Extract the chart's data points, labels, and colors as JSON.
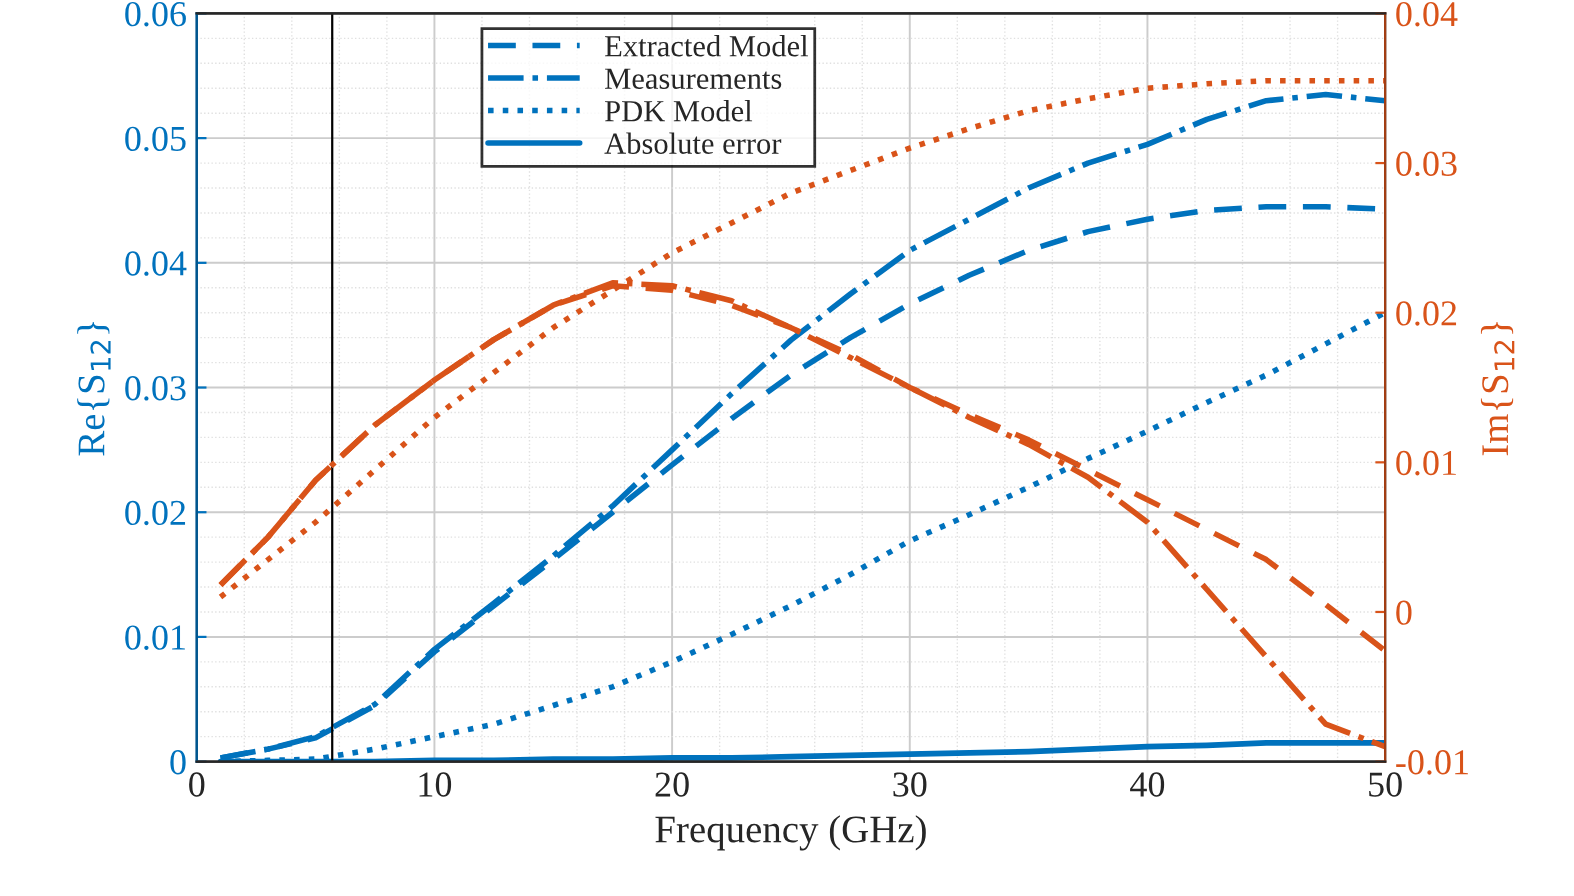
{
  "chart_data": {
    "type": "line",
    "xlabel": "Frequency (GHz)",
    "ylabel": "Re{S$_{12}$}",
    "y2label": "Im{S$_{12}$}",
    "xlim": [
      0,
      50
    ],
    "xticks": [
      0,
      10,
      20,
      30,
      40,
      50
    ],
    "ylim": [
      0,
      0.06
    ],
    "yticks": [
      0,
      0.01,
      0.02,
      0.03,
      0.04,
      0.05,
      0.06
    ],
    "y2lim": [
      -0.01,
      0.04
    ],
    "y2ticks": [
      -0.01,
      0,
      0.01,
      0.02,
      0.03,
      0.04
    ],
    "grid": true,
    "legend": "top",
    "ref_lines": [
      {
        "axis": "x",
        "value": 5.7,
        "color": "#000000"
      }
    ],
    "x": [
      1,
      3,
      5,
      7.5,
      10,
      12.5,
      15,
      17.5,
      20,
      22.5,
      25,
      27.5,
      30,
      32.5,
      35,
      37.5,
      40,
      42.5,
      45,
      47.5,
      50
    ],
    "series": [
      {
        "name": "Extracted Model",
        "color": "#0072bd",
        "line_style": "dashed",
        "values": [
          0.0003,
          0.001,
          0.0019,
          0.0045,
          0.0088,
          0.0125,
          0.0162,
          0.02,
          0.0238,
          0.0275,
          0.031,
          0.034,
          0.0367,
          0.039,
          0.041,
          0.0425,
          0.0435,
          0.0442,
          0.0445,
          0.0445,
          0.0443
        ]
      },
      {
        "name": "Measurements",
        "color": "#0072bd",
        "line_style": "dashdot",
        "values": [
          0.0003,
          0.001,
          0.002,
          0.0046,
          0.009,
          0.0127,
          0.0165,
          0.0205,
          0.025,
          0.0295,
          0.0338,
          0.0375,
          0.041,
          0.0435,
          0.046,
          0.048,
          0.0495,
          0.0515,
          0.053,
          0.0535,
          0.053
        ]
      },
      {
        "name": "PDK Model",
        "color": "#0072bd",
        "line_style": "dotted",
        "values": [
          0.0,
          0.0001,
          0.0002,
          0.001,
          0.002,
          0.003,
          0.0045,
          0.006,
          0.008,
          0.0102,
          0.0125,
          0.015,
          0.0177,
          0.0198,
          0.022,
          0.0243,
          0.0265,
          0.0288,
          0.031,
          0.0335,
          0.036
        ]
      },
      {
        "name": "Absolute error",
        "color": "#0072bd",
        "line_style": "solid",
        "values": [
          0.0,
          0.0,
          0.0,
          0.0,
          0.0001,
          0.0001,
          0.0002,
          0.0002,
          0.0003,
          0.0003,
          0.0004,
          0.0005,
          0.0006,
          0.0007,
          0.0008,
          0.001,
          0.0012,
          0.0013,
          0.0015,
          0.0015,
          0.0015
        ]
      },
      {
        "color": "#d95319",
        "line_style": "dashed",
        "axis": "y2",
        "values": [
          0.0018,
          0.005,
          0.0088,
          0.0125,
          0.0155,
          0.0182,
          0.0205,
          0.0218,
          0.0215,
          0.0205,
          0.019,
          0.0172,
          0.015,
          0.0132,
          0.0115,
          0.0095,
          0.0075,
          0.0055,
          0.0035,
          0.0005,
          -0.0026
        ]
      },
      {
        "color": "#d95319",
        "line_style": "dashdot",
        "axis": "y2",
        "values": [
          0.0018,
          0.005,
          0.0088,
          0.0125,
          0.0155,
          0.0182,
          0.0205,
          0.022,
          0.0218,
          0.0208,
          0.019,
          0.017,
          0.015,
          0.013,
          0.0112,
          0.009,
          0.006,
          0.0015,
          -0.003,
          -0.0075,
          -0.009
        ]
      },
      {
        "color": "#d95319",
        "line_style": "dotted",
        "axis": "y2",
        "values": [
          0.001,
          0.0035,
          0.006,
          0.0095,
          0.013,
          0.016,
          0.019,
          0.0215,
          0.024,
          0.026,
          0.028,
          0.0295,
          0.031,
          0.0323,
          0.0335,
          0.0343,
          0.035,
          0.0353,
          0.0355,
          0.0355,
          0.0355
        ]
      }
    ]
  }
}
